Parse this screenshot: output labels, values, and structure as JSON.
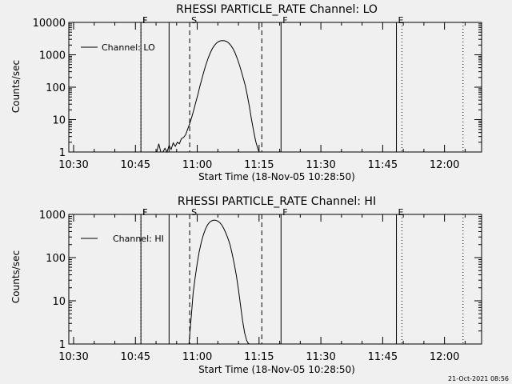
{
  "footer": {
    "timestamp": "21-Oct-2021 08:56"
  },
  "chart_data": [
    {
      "type": "line",
      "title": "RHESSI PARTICLE_RATE Channel: LO",
      "xlabel": "Start Time (18-Nov-05 10:28:50)",
      "ylabel": "Counts/sec",
      "y_scale": "log",
      "ylim": [
        1,
        10000
      ],
      "xlim": [
        "10:28:50",
        "12:09:00"
      ],
      "x_ticks": [
        "10:30",
        "10:45",
        "11:00",
        "11:15",
        "11:30",
        "11:45",
        "12:00"
      ],
      "y_ticks": [
        "1",
        "10",
        "100",
        "1000",
        "10000"
      ],
      "legend": {
        "position": "top-left",
        "entries": [
          "Channel: LO"
        ]
      },
      "grid": false,
      "series": [
        {
          "name": "Channel: LO",
          "x": [
            "10:50:10",
            "10:50:40",
            "10:51:10",
            "10:51:40",
            "10:52:10",
            "10:52:40",
            "10:53:10",
            "10:53:40",
            "10:54:10",
            "10:54:40",
            "10:55:10",
            "10:55:40",
            "10:56:10",
            "10:56:40",
            "10:57:10",
            "10:57:40",
            "10:58:10",
            "10:58:40",
            "10:59:10",
            "10:59:40",
            "11:00:10",
            "11:00:40",
            "11:01:10",
            "11:01:40",
            "11:02:10",
            "11:02:40",
            "11:03:10",
            "11:03:40",
            "11:04:10",
            "11:04:40",
            "11:05:10",
            "11:05:40",
            "11:06:10",
            "11:06:40",
            "11:07:10",
            "11:07:40",
            "11:08:10",
            "11:08:40",
            "11:09:10",
            "11:09:40",
            "11:10:10",
            "11:10:40",
            "11:11:10",
            "11:11:40",
            "11:12:10",
            "11:12:40",
            "11:13:10",
            "11:13:40",
            "11:14:10",
            "11:14:40",
            "11:15:00"
          ],
          "y": [
            1.0,
            1.8,
            1.0,
            1.0,
            1.3,
            1.0,
            1.6,
            1.2,
            1.9,
            1.5,
            2.0,
            1.8,
            2.6,
            2.8,
            3.4,
            5.0,
            7.5,
            12,
            20,
            35,
            60,
            110,
            190,
            320,
            520,
            800,
            1150,
            1550,
            1950,
            2300,
            2550,
            2700,
            2750,
            2700,
            2550,
            2300,
            1950,
            1550,
            1150,
            800,
            520,
            320,
            190,
            110,
            55,
            25,
            10,
            4.5,
            2.2,
            1.3,
            1.0
          ]
        }
      ],
      "annotations": [
        {
          "label": "F",
          "time": "10:46:20",
          "style": "dotted"
        },
        {
          "label": "F",
          "time": "10:46:20",
          "style": "solid"
        },
        {
          "label": "",
          "time": "10:53:10",
          "style": "solid"
        },
        {
          "label": "S",
          "time": "10:58:10",
          "style": "dashed"
        },
        {
          "label": "",
          "time": "11:15:40",
          "style": "dashed"
        },
        {
          "label": "F",
          "time": "11:20:20",
          "style": "solid"
        },
        {
          "label": "E",
          "time": "11:48:20",
          "style": "solid"
        },
        {
          "label": "",
          "time": "11:49:40",
          "style": "dotted"
        },
        {
          "label": "",
          "time": "12:04:30",
          "style": "dotted"
        }
      ]
    },
    {
      "type": "line",
      "title": "RHESSI PARTICLE_RATE Channel: HI",
      "xlabel": "Start Time (18-Nov-05 10:28:50)",
      "ylabel": "Counts/sec",
      "y_scale": "log",
      "ylim": [
        1,
        1000
      ],
      "xlim": [
        "10:28:50",
        "12:09:00"
      ],
      "x_ticks": [
        "10:30",
        "10:45",
        "11:00",
        "11:15",
        "11:30",
        "11:45",
        "12:00"
      ],
      "y_ticks": [
        "1",
        "10",
        "100",
        "1000"
      ],
      "legend": {
        "position": "top-left",
        "entries": [
          "Channel: HI"
        ]
      },
      "grid": false,
      "series": [
        {
          "name": "Channel: HI",
          "x": [
            "10:58:00",
            "10:58:20",
            "10:58:40",
            "10:59:00",
            "10:59:30",
            "11:00:00",
            "11:00:30",
            "11:01:00",
            "11:01:30",
            "11:02:00",
            "11:02:30",
            "11:03:00",
            "11:03:30",
            "11:04:00",
            "11:04:30",
            "11:05:00",
            "11:05:30",
            "11:06:00",
            "11:06:30",
            "11:07:00",
            "11:07:30",
            "11:08:00",
            "11:08:30",
            "11:09:00",
            "11:09:30",
            "11:10:00",
            "11:10:30",
            "11:11:00",
            "11:11:30",
            "11:12:00",
            "11:12:20",
            "11:12:40"
          ],
          "y": [
            1.0,
            2.5,
            6,
            15,
            35,
            75,
            140,
            230,
            340,
            460,
            570,
            660,
            710,
            740,
            730,
            700,
            640,
            560,
            460,
            360,
            270,
            190,
            120,
            70,
            38,
            18,
            8,
            3.5,
            1.8,
            1.2,
            1.05,
            1.0
          ]
        }
      ],
      "annotations": [
        {
          "label": "F",
          "time": "10:46:20",
          "style": "dotted"
        },
        {
          "label": "F",
          "time": "10:46:20",
          "style": "solid"
        },
        {
          "label": "",
          "time": "10:53:10",
          "style": "solid"
        },
        {
          "label": "S",
          "time": "10:58:10",
          "style": "dashed"
        },
        {
          "label": "",
          "time": "11:15:40",
          "style": "dashed"
        },
        {
          "label": "F",
          "time": "11:20:20",
          "style": "solid"
        },
        {
          "label": "E",
          "time": "11:48:20",
          "style": "solid"
        },
        {
          "label": "",
          "time": "11:49:40",
          "style": "dotted"
        },
        {
          "label": "",
          "time": "12:04:30",
          "style": "dotted"
        }
      ]
    }
  ]
}
